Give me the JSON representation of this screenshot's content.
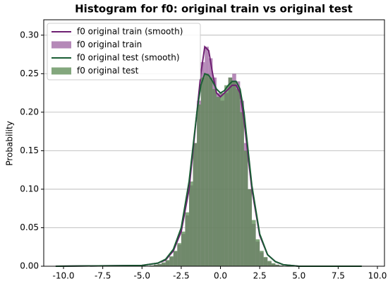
{
  "chart_data": {
    "type": "histogram",
    "title": "Histogram for f0: original train vs original test",
    "ylabel": "Probability",
    "bins": [
      -4.5,
      -4.25,
      -4.0,
      -3.75,
      -3.5,
      -3.25,
      -3.0,
      -2.75,
      -2.5,
      -2.25,
      -2.0,
      -1.75,
      -1.5,
      -1.25,
      -1.0,
      -0.75,
      -0.5,
      -0.25,
      0.0,
      0.25,
      0.5,
      0.75,
      1.0,
      1.25,
      1.5,
      1.75,
      2.0,
      2.25,
      2.5,
      2.75,
      3.0,
      3.25,
      3.5,
      3.75,
      4.0
    ],
    "series": [
      {
        "name": "f0 original train",
        "color": "#9c62a0",
        "values": [
          0.001,
          0.002,
          0.003,
          0.004,
          0.007,
          0.012,
          0.019,
          0.028,
          0.042,
          0.066,
          0.105,
          0.16,
          0.215,
          0.265,
          0.285,
          0.27,
          0.245,
          0.225,
          0.215,
          0.225,
          0.245,
          0.25,
          0.24,
          0.215,
          0.16,
          0.1,
          0.055,
          0.032,
          0.018,
          0.011,
          0.006,
          0.003,
          0.002,
          0.001
        ]
      },
      {
        "name": "f0 original test",
        "color": "#5a8a52",
        "values": [
          0.001,
          0.002,
          0.003,
          0.005,
          0.008,
          0.013,
          0.02,
          0.03,
          0.045,
          0.07,
          0.11,
          0.16,
          0.21,
          0.245,
          0.25,
          0.245,
          0.23,
          0.22,
          0.225,
          0.235,
          0.245,
          0.24,
          0.23,
          0.2,
          0.15,
          0.1,
          0.06,
          0.035,
          0.02,
          0.012,
          0.007,
          0.004,
          0.002,
          0.001
        ]
      }
    ],
    "lines": [
      {
        "name": "f0 original train (smooth)",
        "color": "#6e1f72",
        "x": [
          -10.5,
          -5,
          -4,
          -3.5,
          -3,
          -2.5,
          -2,
          -1.5,
          -1.25,
          -1,
          -0.75,
          -0.5,
          -0.25,
          0,
          0.25,
          0.5,
          0.75,
          1,
          1.25,
          1.5,
          2,
          2.5,
          3,
          3.5,
          4,
          5,
          9
        ],
        "values": [
          0,
          0.001,
          0.004,
          0.008,
          0.02,
          0.045,
          0.1,
          0.2,
          0.25,
          0.285,
          0.28,
          0.25,
          0.225,
          0.22,
          0.225,
          0.23,
          0.235,
          0.235,
          0.225,
          0.19,
          0.1,
          0.04,
          0.015,
          0.006,
          0.002,
          0,
          0
        ]
      },
      {
        "name": "f0 original test (smooth)",
        "color": "#1b5e35",
        "x": [
          -10.5,
          -5,
          -4,
          -3.5,
          -3,
          -2.5,
          -2,
          -1.5,
          -1.25,
          -1,
          -0.75,
          -0.5,
          -0.25,
          0,
          0.25,
          0.5,
          0.75,
          1,
          1.25,
          1.5,
          2,
          2.5,
          3,
          3.5,
          4,
          5,
          9
        ],
        "values": [
          0,
          0.001,
          0.004,
          0.009,
          0.022,
          0.05,
          0.11,
          0.2,
          0.235,
          0.25,
          0.248,
          0.24,
          0.23,
          0.225,
          0.228,
          0.235,
          0.24,
          0.24,
          0.23,
          0.2,
          0.105,
          0.042,
          0.015,
          0.006,
          0.002,
          0,
          0
        ]
      }
    ],
    "xlim": [
      -11.26,
      10.45
    ],
    "ylim": [
      0,
      0.32
    ],
    "xticks": [
      {
        "value": -10,
        "label": "-10.0"
      },
      {
        "value": -7.5,
        "label": "-7.5"
      },
      {
        "value": -5,
        "label": "-5.0"
      },
      {
        "value": -2.5,
        "label": "-2.5"
      },
      {
        "value": 0,
        "label": "0.0"
      },
      {
        "value": 2.5,
        "label": "2.5"
      },
      {
        "value": 5,
        "label": "5.0"
      },
      {
        "value": 7.5,
        "label": "7.5"
      },
      {
        "value": 10,
        "label": "10.0"
      }
    ],
    "yticks": [
      {
        "value": 0,
        "label": "0.00"
      },
      {
        "value": 0.05,
        "label": "0.05"
      },
      {
        "value": 0.1,
        "label": "0.10"
      },
      {
        "value": 0.15,
        "label": "0.15"
      },
      {
        "value": 0.2,
        "label": "0.20"
      },
      {
        "value": 0.25,
        "label": "0.25"
      },
      {
        "value": 0.3,
        "label": "0.30"
      }
    ],
    "grid": true,
    "legend": "upper left"
  }
}
